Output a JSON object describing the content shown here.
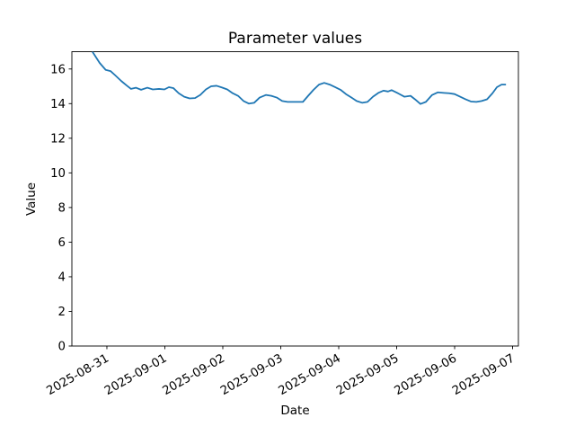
{
  "figure": {
    "background": "#ffffff"
  },
  "chart_data": {
    "type": "line",
    "title": "Parameter values",
    "xlabel": "Date",
    "ylabel": "Value",
    "grid": false,
    "legend": null,
    "line_color": "#1f77b4",
    "axis_color": "#000000",
    "ylim": [
      0,
      17
    ],
    "y_ticks": [
      0,
      2,
      4,
      6,
      8,
      10,
      12,
      14,
      16
    ],
    "x_epoch": "2025-08-31T00:00:00",
    "xlim_hours": [
      -14.5,
      170.4
    ],
    "x_tick_rotation_deg": 30,
    "x_ticks": [
      {
        "label": "2025-08-31",
        "hours": 0
      },
      {
        "label": "2025-09-01",
        "hours": 24
      },
      {
        "label": "2025-09-02",
        "hours": 48
      },
      {
        "label": "2025-09-03",
        "hours": 72
      },
      {
        "label": "2025-09-04",
        "hours": 96
      },
      {
        "label": "2025-09-05",
        "hours": 120
      },
      {
        "label": "2025-09-06",
        "hours": 144
      },
      {
        "label": "2025-09-07",
        "hours": 168
      }
    ],
    "series": [
      {
        "points": [
          [
            "2025-08-30 18:00",
            17.0
          ],
          [
            "2025-08-30 21:00",
            16.35
          ],
          [
            "2025-08-30 23:30",
            15.95
          ],
          [
            "2025-08-31 01:30",
            15.88
          ],
          [
            "2025-08-31 03:20",
            15.65
          ],
          [
            "2025-08-31 06:00",
            15.3
          ],
          [
            "2025-08-31 08:10",
            15.05
          ],
          [
            "2025-08-31 10:00",
            14.85
          ],
          [
            "2025-08-31 12:00",
            14.92
          ],
          [
            "2025-08-31 14:10",
            14.8
          ],
          [
            "2025-08-31 16:45",
            14.92
          ],
          [
            "2025-08-31 19:00",
            14.82
          ],
          [
            "2025-08-31 21:35",
            14.85
          ],
          [
            "2025-08-31 23:50",
            14.82
          ],
          [
            "2025-09-01 01:40",
            14.95
          ],
          [
            "2025-09-01 03:30",
            14.9
          ],
          [
            "2025-09-01 05:45",
            14.6
          ],
          [
            "2025-09-01 08:00",
            14.4
          ],
          [
            "2025-09-01 10:15",
            14.3
          ],
          [
            "2025-09-01 12:30",
            14.32
          ],
          [
            "2025-09-01 14:40",
            14.5
          ],
          [
            "2025-09-01 17:00",
            14.82
          ],
          [
            "2025-09-01 19:10",
            15.0
          ],
          [
            "2025-09-01 21:25",
            15.03
          ],
          [
            "2025-09-01 23:40",
            14.93
          ],
          [
            "2025-09-02 01:50",
            14.82
          ],
          [
            "2025-09-02 04:05",
            14.6
          ],
          [
            "2025-09-02 06:20",
            14.45
          ],
          [
            "2025-09-02 08:35",
            14.15
          ],
          [
            "2025-09-02 10:50",
            14.0
          ],
          [
            "2025-09-02 13:00",
            14.05
          ],
          [
            "2025-09-02 15:15",
            14.35
          ],
          [
            "2025-09-02 17:50",
            14.5
          ],
          [
            "2025-09-02 20:05",
            14.45
          ],
          [
            "2025-09-02 22:20",
            14.35
          ],
          [
            "2025-09-03 00:35",
            14.15
          ],
          [
            "2025-09-03 02:50",
            14.1
          ],
          [
            "2025-09-03 05:45",
            14.1
          ],
          [
            "2025-09-03 09:10",
            14.1
          ],
          [
            "2025-09-03 11:20",
            14.45
          ],
          [
            "2025-09-03 13:35",
            14.8
          ],
          [
            "2025-09-03 15:50",
            15.1
          ],
          [
            "2025-09-03 18:00",
            15.2
          ],
          [
            "2025-09-03 20:15",
            15.1
          ],
          [
            "2025-09-03 22:30",
            14.95
          ],
          [
            "2025-09-04 00:45",
            14.8
          ],
          [
            "2025-09-04 03:00",
            14.55
          ],
          [
            "2025-09-04 05:15",
            14.35
          ],
          [
            "2025-09-04 07:25",
            14.15
          ],
          [
            "2025-09-04 09:40",
            14.05
          ],
          [
            "2025-09-04 11:55",
            14.1
          ],
          [
            "2025-09-04 14:10",
            14.4
          ],
          [
            "2025-09-04 16:25",
            14.62
          ],
          [
            "2025-09-04 18:35",
            14.75
          ],
          [
            "2025-09-04 20:25",
            14.7
          ],
          [
            "2025-09-04 21:55",
            14.78
          ],
          [
            "2025-09-05 00:30",
            14.6
          ],
          [
            "2025-09-05 03:10",
            14.4
          ],
          [
            "2025-09-05 05:45",
            14.45
          ],
          [
            "2025-09-05 07:35",
            14.25
          ],
          [
            "2025-09-05 09:50",
            13.98
          ],
          [
            "2025-09-05 12:05",
            14.1
          ],
          [
            "2025-09-05 14:40",
            14.5
          ],
          [
            "2025-09-05 17:00",
            14.65
          ],
          [
            "2025-09-05 19:35",
            14.62
          ],
          [
            "2025-09-05 21:45",
            14.6
          ],
          [
            "2025-09-06 00:00",
            14.55
          ],
          [
            "2025-09-06 02:15",
            14.4
          ],
          [
            "2025-09-06 04:30",
            14.25
          ],
          [
            "2025-09-06 06:45",
            14.12
          ],
          [
            "2025-09-06 09:00",
            14.1
          ],
          [
            "2025-09-06 11:10",
            14.15
          ],
          [
            "2025-09-06 13:25",
            14.25
          ],
          [
            "2025-09-06 15:40",
            14.6
          ],
          [
            "2025-09-06 17:30",
            14.95
          ],
          [
            "2025-09-06 19:25",
            15.1
          ],
          [
            "2025-09-06 21:15",
            15.1
          ]
        ]
      }
    ]
  }
}
